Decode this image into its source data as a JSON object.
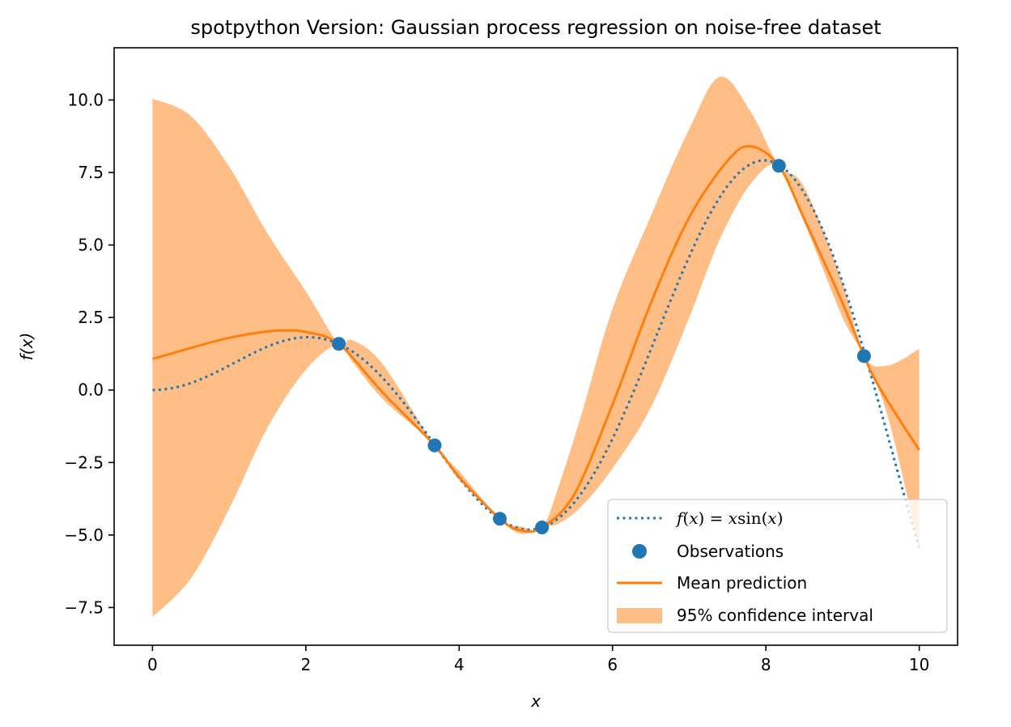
{
  "chart_data": {
    "type": "line",
    "title": "spotpython Version: Gaussian process regression on noise-free dataset",
    "xlabel": "x",
    "ylabel": "f(x)",
    "xlim": [
      -0.5,
      10.5
    ],
    "ylim": [
      -8.8,
      11.8
    ],
    "xticks": [
      0,
      2,
      4,
      6,
      8,
      10
    ],
    "xtick_labels": [
      "0",
      "2",
      "4",
      "6",
      "8",
      "10"
    ],
    "yticks": [
      -7.5,
      -5.0,
      -2.5,
      0.0,
      2.5,
      5.0,
      7.5,
      10.0
    ],
    "ytick_labels": [
      "−7.5",
      "−5.0",
      "−2.5",
      "0.0",
      "2.5",
      "5.0",
      "7.5",
      "10.0"
    ],
    "grid": false,
    "legend_placement": "lower-right",
    "legend": [
      {
        "key": "true_function",
        "label": "f(x) = x sin(x)"
      },
      {
        "key": "observations",
        "label": "Observations"
      },
      {
        "key": "mean_prediction",
        "label": "Mean prediction"
      },
      {
        "key": "confidence_interval",
        "label": "95% confidence interval"
      }
    ],
    "colors": {
      "true_function": "#1f77b4",
      "observations": "#1f77b4",
      "mean_prediction": "#ff7f0e",
      "confidence_interval": "#ffbe86"
    },
    "observations": {
      "x": [
        2.43,
        3.68,
        4.53,
        5.08,
        8.17,
        9.28
      ],
      "y": [
        1.59,
        -1.91,
        -4.44,
        -4.74,
        7.73,
        1.17
      ]
    },
    "mean_prediction": {
      "x": [
        0,
        0.5,
        1.0,
        1.5,
        1.75,
        2.0,
        2.43,
        3.0,
        3.68,
        4.0,
        4.53,
        4.8,
        5.08,
        5.5,
        6.0,
        6.5,
        7.0,
        7.5,
        7.8,
        8.17,
        8.5,
        9.0,
        9.28,
        9.5,
        10.0
      ],
      "y": [
        1.07,
        1.45,
        1.8,
        2.02,
        2.05,
        2.0,
        1.59,
        -0.08,
        -1.91,
        -3.0,
        -4.44,
        -4.84,
        -4.74,
        -3.6,
        -0.5,
        3.0,
        5.95,
        7.9,
        8.4,
        7.73,
        5.9,
        3.0,
        1.17,
        0.0,
        -2.07
      ]
    },
    "confidence_interval": {
      "x": [
        0,
        0.5,
        1.0,
        1.5,
        2.0,
        2.43,
        2.6,
        3.0,
        3.68,
        4.0,
        4.53,
        4.8,
        5.08,
        5.3,
        5.6,
        6.0,
        6.5,
        7.0,
        7.4,
        7.8,
        8.17,
        8.5,
        9.0,
        9.28,
        9.6,
        10.0
      ],
      "upper": [
        10.05,
        9.45,
        7.7,
        5.4,
        3.4,
        1.59,
        1.72,
        0.9,
        -1.91,
        -2.8,
        -4.44,
        -4.7,
        -4.74,
        -3.3,
        -0.8,
        2.8,
        6.0,
        9.0,
        10.8,
        9.6,
        7.73,
        7.0,
        3.7,
        1.17,
        0.85,
        1.42
      ],
      "lower": [
        -7.83,
        -6.5,
        -4.1,
        -1.3,
        0.7,
        1.59,
        1.0,
        -0.3,
        -1.91,
        -3.1,
        -4.44,
        -4.96,
        -4.74,
        -4.6,
        -4.0,
        -2.7,
        -0.6,
        2.5,
        5.2,
        7.1,
        7.73,
        5.8,
        2.5,
        1.17,
        -1.0,
        -5.5
      ]
    }
  }
}
